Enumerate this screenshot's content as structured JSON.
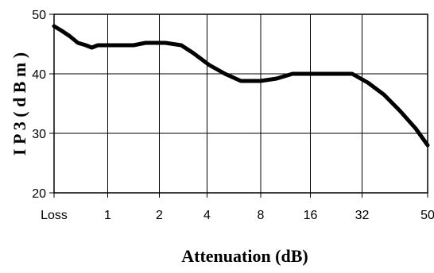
{
  "chart_data": {
    "type": "line",
    "xlabel": "Attenuation (dB)",
    "ylabel": "I P 3  ( d B m )",
    "x": [
      "Loss",
      "1",
      "2",
      "4",
      "8",
      "16",
      "32",
      "50"
    ],
    "ylim": [
      20,
      50
    ],
    "yticks": [
      20,
      30,
      40,
      50
    ],
    "grid": true,
    "series": [
      {
        "values": [
          [
            0,
            48.0
          ],
          [
            0.2,
            47.2
          ],
          [
            0.4,
            46.3
          ],
          [
            0.6,
            45.2
          ],
          [
            0.8,
            44.8
          ],
          [
            0.95,
            44.4
          ],
          [
            1.1,
            44.8
          ],
          [
            1.5,
            44.8
          ],
          [
            2.0,
            44.8
          ],
          [
            2.3,
            45.2
          ],
          [
            2.8,
            45.2
          ],
          [
            3.2,
            44.8
          ],
          [
            3.5,
            43.5
          ],
          [
            3.9,
            41.5
          ],
          [
            4.3,
            40.0
          ],
          [
            4.7,
            38.8
          ],
          [
            5.2,
            38.8
          ],
          [
            5.6,
            39.2
          ],
          [
            6.0,
            40.0
          ],
          [
            6.5,
            40.0
          ],
          [
            7.0,
            40.0
          ],
          [
            7.5,
            40.0
          ],
          [
            7.9,
            38.5
          ],
          [
            8.3,
            36.5
          ],
          [
            8.7,
            33.8
          ],
          [
            9.1,
            30.8
          ],
          [
            9.4,
            28.0
          ]
        ]
      }
    ],
    "style": {
      "line_color": "#000000",
      "grid_color": "#000000",
      "background": "#ffffff"
    }
  }
}
